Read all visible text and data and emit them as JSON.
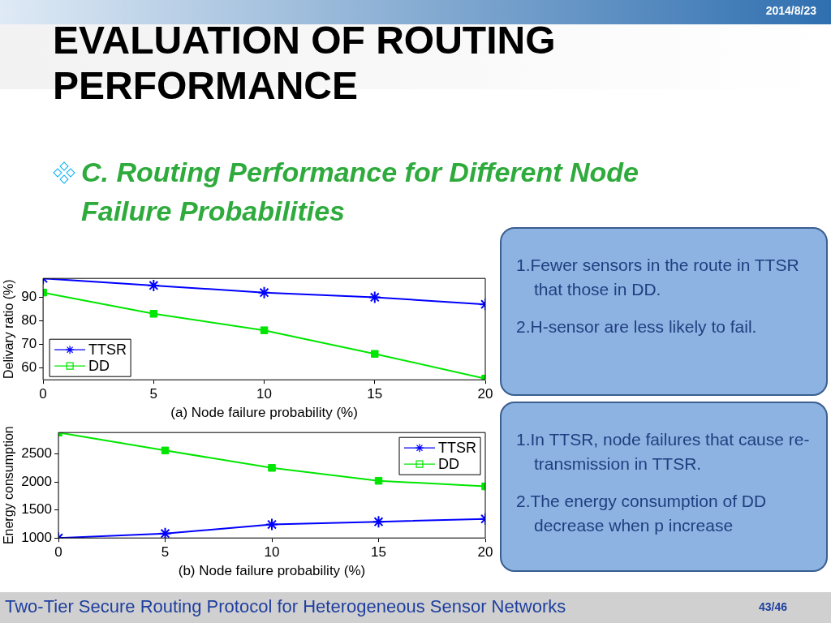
{
  "chart_data": [
    {
      "type": "other",
      "title": "EVALUATION OF ROUTING PERFORMANCE",
      "subtitle": "C. Routing Performance for Different Node Failure Probabilities",
      "annotations": [
        "2014/8/23",
        "Two-Tier Secure Routing Protocol for Heterogeneous Sensor Networks",
        "43/46"
      ]
    },
    {
      "type": "line",
      "xlabel": "(a) Node failure probability (%)",
      "ylabel": "Delivary ratio (%)",
      "x": [
        0,
        5,
        10,
        15,
        20
      ],
      "xlim": [
        0,
        20
      ],
      "xticks": [
        0,
        5,
        10,
        15,
        20
      ],
      "ylim": [
        55,
        98
      ],
      "yticks": [
        60,
        70,
        80,
        90
      ],
      "grid": false,
      "legend": "bottom left",
      "series": [
        {
          "name": "TTSR",
          "color": "#0000ff",
          "marker": "cross",
          "values": [
            98,
            95,
            92,
            90,
            87
          ]
        },
        {
          "name": "DD",
          "color": "#00e600",
          "marker": "square",
          "values": [
            92,
            83,
            76,
            66,
            55.5
          ]
        }
      ],
      "annotations": [
        "1.Fewer sensors in the route in TTSR that those in DD.",
        "2.H-sensor are less likely to fail."
      ]
    },
    {
      "type": "line",
      "xlabel": "(b) Node failure probability (%)",
      "ylabel": "Energy consumption",
      "x": [
        0,
        5,
        10,
        15,
        20
      ],
      "xlim": [
        0,
        20
      ],
      "xticks": [
        0,
        5,
        10,
        15,
        20
      ],
      "ylim": [
        1000,
        2880
      ],
      "yticks": [
        1000,
        1500,
        2000,
        2500
      ],
      "grid": false,
      "legend": "top right",
      "series": [
        {
          "name": "TTSR",
          "color": "#0000ff",
          "marker": "cross",
          "values": [
            1000,
            1080,
            1240,
            1290,
            1340
          ]
        },
        {
          "name": "DD",
          "color": "#00e600",
          "marker": "square",
          "values": [
            2880,
            2560,
            2250,
            2020,
            1920
          ]
        }
      ],
      "annotations": [
        "1.In TTSR, node failures that cause re-transmission in TTSR.",
        "2.The energy consumption of DD decrease when p increase"
      ]
    }
  ]
}
